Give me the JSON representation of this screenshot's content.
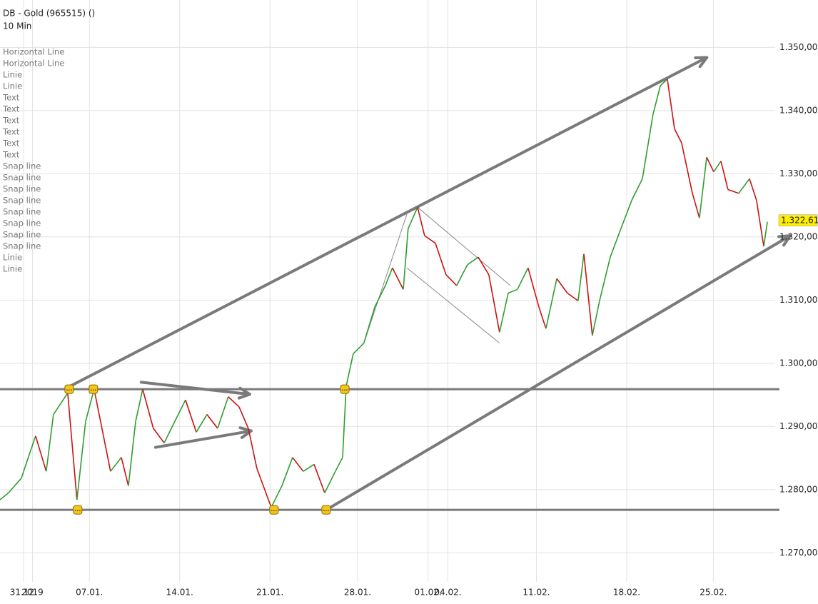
{
  "chart_data": {
    "type": "line",
    "title": "DB - Gold (965515) ()",
    "subtitle": "10 Min",
    "drawing_list": [
      "Horizontal Line",
      "Horizontal Line",
      "Linie",
      "Linie",
      "Text",
      "Text",
      "Text",
      "Text",
      "Text",
      "Text",
      "Snap line",
      "Snap line",
      "Snap line",
      "Snap line",
      "Snap line",
      "Snap line",
      "Snap line",
      "Snap line",
      "Linie",
      "Linie"
    ],
    "x": [
      -1.3,
      -0.83,
      -0.12,
      0.67,
      1.26,
      1.66,
      2.45,
      2.96,
      3.44,
      3.91,
      4.43,
      4.82,
      5.42,
      5.81,
      6.21,
      6.6,
      7.19,
      7.79,
      8.38,
      8.97,
      9.57,
      10.16,
      10.75,
      11.34,
      11.94,
      12.45,
      12.92,
      13.72,
      14.31,
      14.9,
      15.49,
      16.09,
      16.68,
      17.27,
      17.67,
      17.87,
      18.26,
      18.85,
      19.45,
      20.04,
      20.43,
      21.03,
      21.3,
      21.82,
      22.21,
      22.81,
      23.4,
      23.99,
      24.58,
      25.18,
      25.77,
      26.36,
      26.84,
      27.35,
      27.94,
      28.54,
      28.93,
      29.53,
      30.12,
      30.71,
      31.03,
      31.5,
      31.9,
      32.49,
      33.08,
      33.68,
      34.27,
      34.86,
      35.26,
      35.65,
      36.05,
      36.44,
      37.04,
      37.43,
      37.83,
      38.22,
      38.62,
      39.01,
      39.6,
      40.2,
      40.59,
      40.99,
      41.19
    ],
    "series": [
      {
        "name": "Gold",
        "up_color": "#2e9e2e",
        "down_color": "#cc1111",
        "values": [
          1278.4,
          1279.5,
          1281.8,
          1288.5,
          1282.9,
          1291.9,
          1295.3,
          1278.4,
          1290.8,
          1295.9,
          1288.5,
          1282.9,
          1285.1,
          1280.6,
          1290.8,
          1295.9,
          1289.7,
          1287.4,
          1290.8,
          1294.2,
          1289.1,
          1291.9,
          1289.7,
          1294.7,
          1293.1,
          1289.7,
          1283.4,
          1277.2,
          1280.6,
          1285.1,
          1282.9,
          1284.0,
          1279.5,
          1282.9,
          1285.1,
          1296.4,
          1301.5,
          1303.2,
          1308.9,
          1312.3,
          1315.1,
          1311.7,
          1321.3,
          1324.7,
          1320.2,
          1319.0,
          1314.0,
          1312.3,
          1315.6,
          1316.8,
          1314.0,
          1304.9,
          1311.1,
          1311.7,
          1315.1,
          1308.9,
          1305.5,
          1313.4,
          1311.1,
          1309.9,
          1317.3,
          1304.4,
          1309.9,
          1316.8,
          1321.3,
          1325.8,
          1329.2,
          1339.4,
          1343.9,
          1345.0,
          1337.1,
          1334.9,
          1326.9,
          1323.0,
          1332.6,
          1330.3,
          1332.0,
          1327.5,
          1326.9,
          1329.2,
          1325.8,
          1318.5,
          1322.4
        ]
      }
    ],
    "last_price": {
      "value": 1322.61,
      "label": "1.322,61"
    },
    "xlim": [
      -1.3,
      41.86
    ],
    "xticks": [
      {
        "value": 0,
        "label": "31.12."
      },
      {
        "value": 0.5,
        "label": "2019"
      },
      {
        "value": 3.65,
        "label": "07.01."
      },
      {
        "value": 8.65,
        "label": "14.01."
      },
      {
        "value": 13.65,
        "label": "21.01."
      },
      {
        "value": 18.5,
        "label": "28.01."
      },
      {
        "value": 22.4,
        "label": "01.02."
      },
      {
        "value": 23.5,
        "label": "04.02."
      },
      {
        "value": 28.4,
        "label": "11.02."
      },
      {
        "value": 33.4,
        "label": "18.02."
      },
      {
        "value": 38.2,
        "label": "25.02."
      }
    ],
    "ylim": [
      1265,
      1357.5
    ],
    "yticks": [
      {
        "value": 1270,
        "label": "1.270,00"
      },
      {
        "value": 1280,
        "label": "1.280,00"
      },
      {
        "value": 1290,
        "label": "1.290,00"
      },
      {
        "value": 1300,
        "label": "1.300,00"
      },
      {
        "value": 1310,
        "label": "1.310,00"
      },
      {
        "value": 1320,
        "label": "1.320,00"
      },
      {
        "value": 1330,
        "label": "1.330,00"
      },
      {
        "value": 1340,
        "label": "1.340,00"
      },
      {
        "value": 1350,
        "label": "1.350,00"
      }
    ],
    "grid": true,
    "horizontal_lines": [
      1295.9,
      1276.8
    ],
    "arrows": [
      {
        "x": [
          2.53,
          37.84
        ],
        "y": [
          1296.3,
          1348.4
        ]
      },
      {
        "x": [
          16.76,
          42.45
        ],
        "y": [
          1276.8,
          1320.2
        ]
      },
      {
        "x": [
          6.52,
          12.53
        ],
        "y": [
          1297.0,
          1295.1
        ]
      },
      {
        "x": [
          7.31,
          12.61
        ],
        "y": [
          1286.7,
          1289.3
        ]
      }
    ],
    "thin_lines": [
      {
        "x": [
          21.23,
          26.36
        ],
        "y": [
          1315.1,
          1303.2
        ]
      },
      {
        "x": [
          21.82,
          26.96
        ],
        "y": [
          1324.7,
          1312.3
        ]
      },
      {
        "x": [
          18.85,
          21.23
        ],
        "y": [
          1303.2,
          1323.6
        ]
      }
    ],
    "markers": [
      {
        "x": 2.53,
        "y": 1295.9
      },
      {
        "x": 3.87,
        "y": 1295.9
      },
      {
        "x": 17.79,
        "y": 1295.9
      },
      {
        "x": 3.0,
        "y": 1276.8
      },
      {
        "x": 13.87,
        "y": 1276.8
      },
      {
        "x": 16.76,
        "y": 1276.8
      }
    ]
  }
}
